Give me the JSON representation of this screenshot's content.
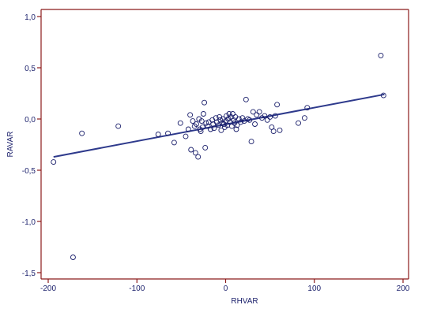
{
  "chart_data": {
    "type": "scatter",
    "title": "",
    "xlabel": "RHVAR",
    "ylabel": "RAVAR",
    "xlim": [
      -210,
      205
    ],
    "ylim": [
      -1.5,
      1.07
    ],
    "x_ticks": [
      -200,
      -100,
      0,
      100,
      200
    ],
    "x_tick_labels": [
      "-200",
      "-100",
      "0",
      "100",
      "200"
    ],
    "y_ticks": [
      -1.5,
      -1.0,
      -0.5,
      0.0,
      0.5,
      1.0
    ],
    "y_tick_labels": [
      "-1,5",
      "-1,0",
      "-0,5",
      "0,0",
      "0,5",
      "1,0"
    ],
    "grid": false,
    "legend": "none",
    "colors": {
      "axis": "#8b1a1a",
      "points": "#1a1f6b",
      "fit_line": "#2e3a8c",
      "text": "#1a1f6b"
    },
    "regression_line": {
      "x": [
        -194,
        179
      ],
      "y": [
        -0.37,
        0.24
      ]
    },
    "points": [
      {
        "x": -194,
        "y": -0.42
      },
      {
        "x": -172,
        "y": -1.35
      },
      {
        "x": -162,
        "y": -0.14
      },
      {
        "x": -121,
        "y": -0.07
      },
      {
        "x": -76,
        "y": -0.15
      },
      {
        "x": -65,
        "y": -0.14
      },
      {
        "x": -58,
        "y": -0.23
      },
      {
        "x": -51,
        "y": -0.04
      },
      {
        "x": -45,
        "y": -0.17
      },
      {
        "x": -42,
        "y": -0.1
      },
      {
        "x": -40,
        "y": 0.04
      },
      {
        "x": -39,
        "y": -0.3
      },
      {
        "x": -37,
        "y": -0.02
      },
      {
        "x": -35,
        "y": -0.07
      },
      {
        "x": -34,
        "y": -0.33
      },
      {
        "x": -33,
        "y": -0.05
      },
      {
        "x": -31,
        "y": -0.37
      },
      {
        "x": -30,
        "y": 0.0
      },
      {
        "x": -29,
        "y": -0.1
      },
      {
        "x": -28,
        "y": -0.12
      },
      {
        "x": -27,
        "y": -0.02
      },
      {
        "x": -26,
        "y": -0.08
      },
      {
        "x": -25,
        "y": 0.05
      },
      {
        "x": -24,
        "y": 0.16
      },
      {
        "x": -23,
        "y": -0.28
      },
      {
        "x": -22,
        "y": -0.04
      },
      {
        "x": -20,
        "y": -0.07
      },
      {
        "x": -19,
        "y": -0.03
      },
      {
        "x": -17,
        "y": -0.1
      },
      {
        "x": -15,
        "y": -0.01
      },
      {
        "x": -14,
        "y": -0.05
      },
      {
        "x": -13,
        "y": -0.09
      },
      {
        "x": -11,
        "y": 0.01
      },
      {
        "x": -10,
        "y": -0.03
      },
      {
        "x": -8,
        "y": -0.06
      },
      {
        "x": -7,
        "y": 0.02
      },
      {
        "x": -6,
        "y": -0.01
      },
      {
        "x": -5,
        "y": -0.11
      },
      {
        "x": -4,
        "y": -0.04
      },
      {
        "x": -3,
        "y": 0.0
      },
      {
        "x": -2,
        "y": -0.05
      },
      {
        "x": -1,
        "y": -0.08
      },
      {
        "x": 0,
        "y": -0.02
      },
      {
        "x": 1,
        "y": 0.03
      },
      {
        "x": 2,
        "y": -0.06
      },
      {
        "x": 3,
        "y": 0.0
      },
      {
        "x": 4,
        "y": 0.05
      },
      {
        "x": 5,
        "y": -0.03
      },
      {
        "x": 6,
        "y": 0.02
      },
      {
        "x": 7,
        "y": -0.07
      },
      {
        "x": 8,
        "y": 0.05
      },
      {
        "x": 9,
        "y": -0.01
      },
      {
        "x": 10,
        "y": -0.04
      },
      {
        "x": 11,
        "y": 0.02
      },
      {
        "x": 12,
        "y": -0.1
      },
      {
        "x": 13,
        "y": -0.06
      },
      {
        "x": 15,
        "y": 0.0
      },
      {
        "x": 17,
        "y": -0.03
      },
      {
        "x": 19,
        "y": 0.01
      },
      {
        "x": 21,
        "y": -0.02
      },
      {
        "x": 23,
        "y": 0.19
      },
      {
        "x": 25,
        "y": 0.0
      },
      {
        "x": 27,
        "y": -0.01
      },
      {
        "x": 29,
        "y": -0.22
      },
      {
        "x": 31,
        "y": 0.07
      },
      {
        "x": 33,
        "y": -0.05
      },
      {
        "x": 35,
        "y": 0.04
      },
      {
        "x": 38,
        "y": 0.07
      },
      {
        "x": 41,
        "y": 0.01
      },
      {
        "x": 44,
        "y": 0.03
      },
      {
        "x": 47,
        "y": -0.01
      },
      {
        "x": 50,
        "y": 0.02
      },
      {
        "x": 52,
        "y": -0.08
      },
      {
        "x": 54,
        "y": -0.12
      },
      {
        "x": 56,
        "y": 0.03
      },
      {
        "x": 58,
        "y": 0.14
      },
      {
        "x": 61,
        "y": -0.11
      },
      {
        "x": 82,
        "y": -0.04
      },
      {
        "x": 89,
        "y": 0.01
      },
      {
        "x": 92,
        "y": 0.11
      },
      {
        "x": 175,
        "y": 0.62
      },
      {
        "x": 178,
        "y": 0.23
      }
    ]
  }
}
